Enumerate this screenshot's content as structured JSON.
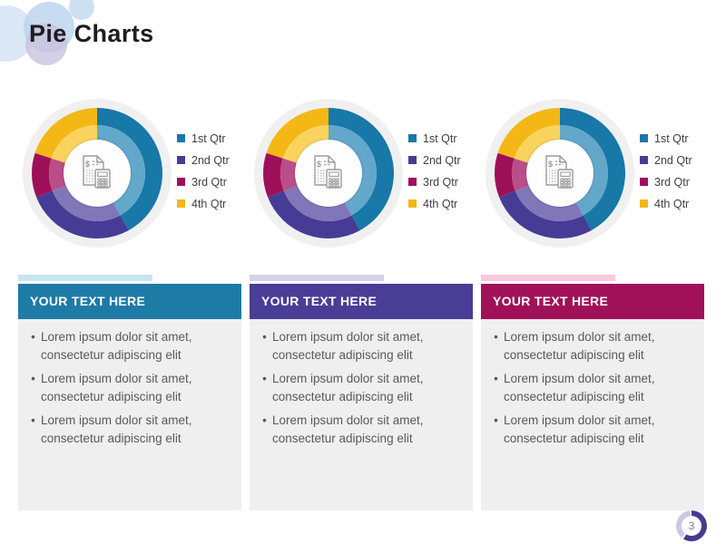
{
  "slide": {
    "title": "Pie Charts",
    "page_number": "3"
  },
  "chart_data": [
    {
      "type": "pie",
      "subtype": "donut",
      "categories": [
        "1st Qtr",
        "2nd Qtr",
        "3rd Qtr",
        "4th Qtr"
      ],
      "values": [
        42,
        27,
        11,
        20
      ],
      "colors_outer": [
        "#1878A7",
        "#463C96",
        "#9D1059",
        "#F3B816"
      ],
      "colors_inner": [
        "#63A7CA",
        "#8177B8",
        "#BA4E88",
        "#FAD35E"
      ],
      "legend_position": "right",
      "center_icon": "invoice-calculator-icon"
    },
    {
      "type": "pie",
      "subtype": "donut",
      "categories": [
        "1st Qtr",
        "2nd Qtr",
        "3rd Qtr",
        "4th Qtr"
      ],
      "values": [
        42,
        27,
        11,
        20
      ],
      "colors_outer": [
        "#1878A7",
        "#463C96",
        "#9D1059",
        "#F3B816"
      ],
      "colors_inner": [
        "#63A7CA",
        "#8177B8",
        "#BA4E88",
        "#FAD35E"
      ],
      "legend_position": "right",
      "center_icon": "invoice-calculator-icon"
    },
    {
      "type": "pie",
      "subtype": "donut",
      "categories": [
        "1st Qtr",
        "2nd Qtr",
        "3rd Qtr",
        "4th Qtr"
      ],
      "values": [
        42,
        27,
        11,
        20
      ],
      "colors_outer": [
        "#1878A7",
        "#463C96",
        "#9D1059",
        "#F3B816"
      ],
      "colors_inner": [
        "#63A7CA",
        "#8177B8",
        "#BA4E88",
        "#FAD35E"
      ],
      "legend_position": "right",
      "center_icon": "invoice-calculator-icon"
    }
  ],
  "sections": [
    {
      "header_label": "YOUR TEXT HERE",
      "header_color": "#1e7ba6",
      "accent_color": "#c7e5f1",
      "bullets": [
        "Lorem ipsum dolor sit amet, consectetur adipiscing elit",
        "Lorem ipsum dolor sit amet, consectetur adipiscing elit",
        "Lorem ipsum dolor sit amet, consectetur adipiscing elit"
      ]
    },
    {
      "header_label": "YOUR TEXT HERE",
      "header_color": "#4a3d96",
      "accent_color": "#d4d1e8",
      "bullets": [
        "Lorem ipsum dolor sit amet, consectetur adipiscing elit",
        "Lorem ipsum dolor sit amet, consectetur adipiscing elit",
        "Lorem ipsum dolor sit amet, consectetur adipiscing elit"
      ]
    },
    {
      "header_label": "YOUR TEXT HERE",
      "header_color": "#a11159",
      "accent_color": "#f8c8de",
      "bullets": [
        "Lorem ipsum dolor sit amet, consectetur adipiscing elit",
        "Lorem ipsum dolor sit amet, consectetur adipiscing elit",
        "Lorem ipsum dolor sit amet, consectetur adipiscing elit"
      ]
    }
  ]
}
